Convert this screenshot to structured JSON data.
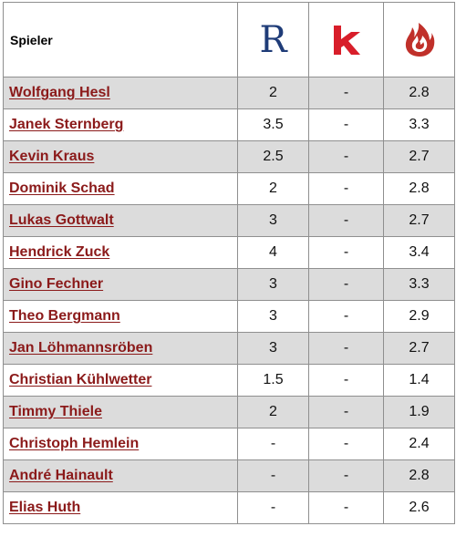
{
  "header": {
    "player_label": "Spieler",
    "icon_r_letter": "R",
    "icon_r_color": "#1f3c78",
    "icon_k": "kicker-k-icon",
    "icon_k_color": "#d81e2a",
    "icon_flame": "flame-icon",
    "icon_flame_color": "#c0302a"
  },
  "colors": {
    "link": "#8b1a1a",
    "row_shade": "#dcdcdc",
    "border": "#8f8f8f"
  },
  "rows": [
    {
      "name": "Wolfgang Hesl",
      "r": "2",
      "k": "-",
      "f": "2.8"
    },
    {
      "name": "Janek Sternberg",
      "r": "3.5",
      "k": "-",
      "f": "3.3"
    },
    {
      "name": "Kevin Kraus",
      "r": "2.5",
      "k": "-",
      "f": "2.7"
    },
    {
      "name": "Dominik Schad",
      "r": "2",
      "k": "-",
      "f": "2.8"
    },
    {
      "name": "Lukas Gottwalt",
      "r": "3",
      "k": "-",
      "f": "2.7"
    },
    {
      "name": "Hendrick Zuck",
      "r": "4",
      "k": "-",
      "f": "3.4"
    },
    {
      "name": "Gino Fechner",
      "r": "3",
      "k": "-",
      "f": "3.3"
    },
    {
      "name": "Theo Bergmann",
      "r": "3",
      "k": "-",
      "f": "2.9"
    },
    {
      "name": "Jan Löhmannsröben",
      "r": "3",
      "k": "-",
      "f": "2.7"
    },
    {
      "name": "Christian Kühlwetter",
      "r": "1.5",
      "k": "-",
      "f": "1.4"
    },
    {
      "name": "Timmy Thiele",
      "r": "2",
      "k": "-",
      "f": "1.9"
    },
    {
      "name": "Christoph Hemlein",
      "r": "-",
      "k": "-",
      "f": "2.4"
    },
    {
      "name": "André Hainault",
      "r": "-",
      "k": "-",
      "f": "2.8"
    },
    {
      "name": "Elias Huth",
      "r": "-",
      "k": "-",
      "f": "2.6"
    }
  ]
}
